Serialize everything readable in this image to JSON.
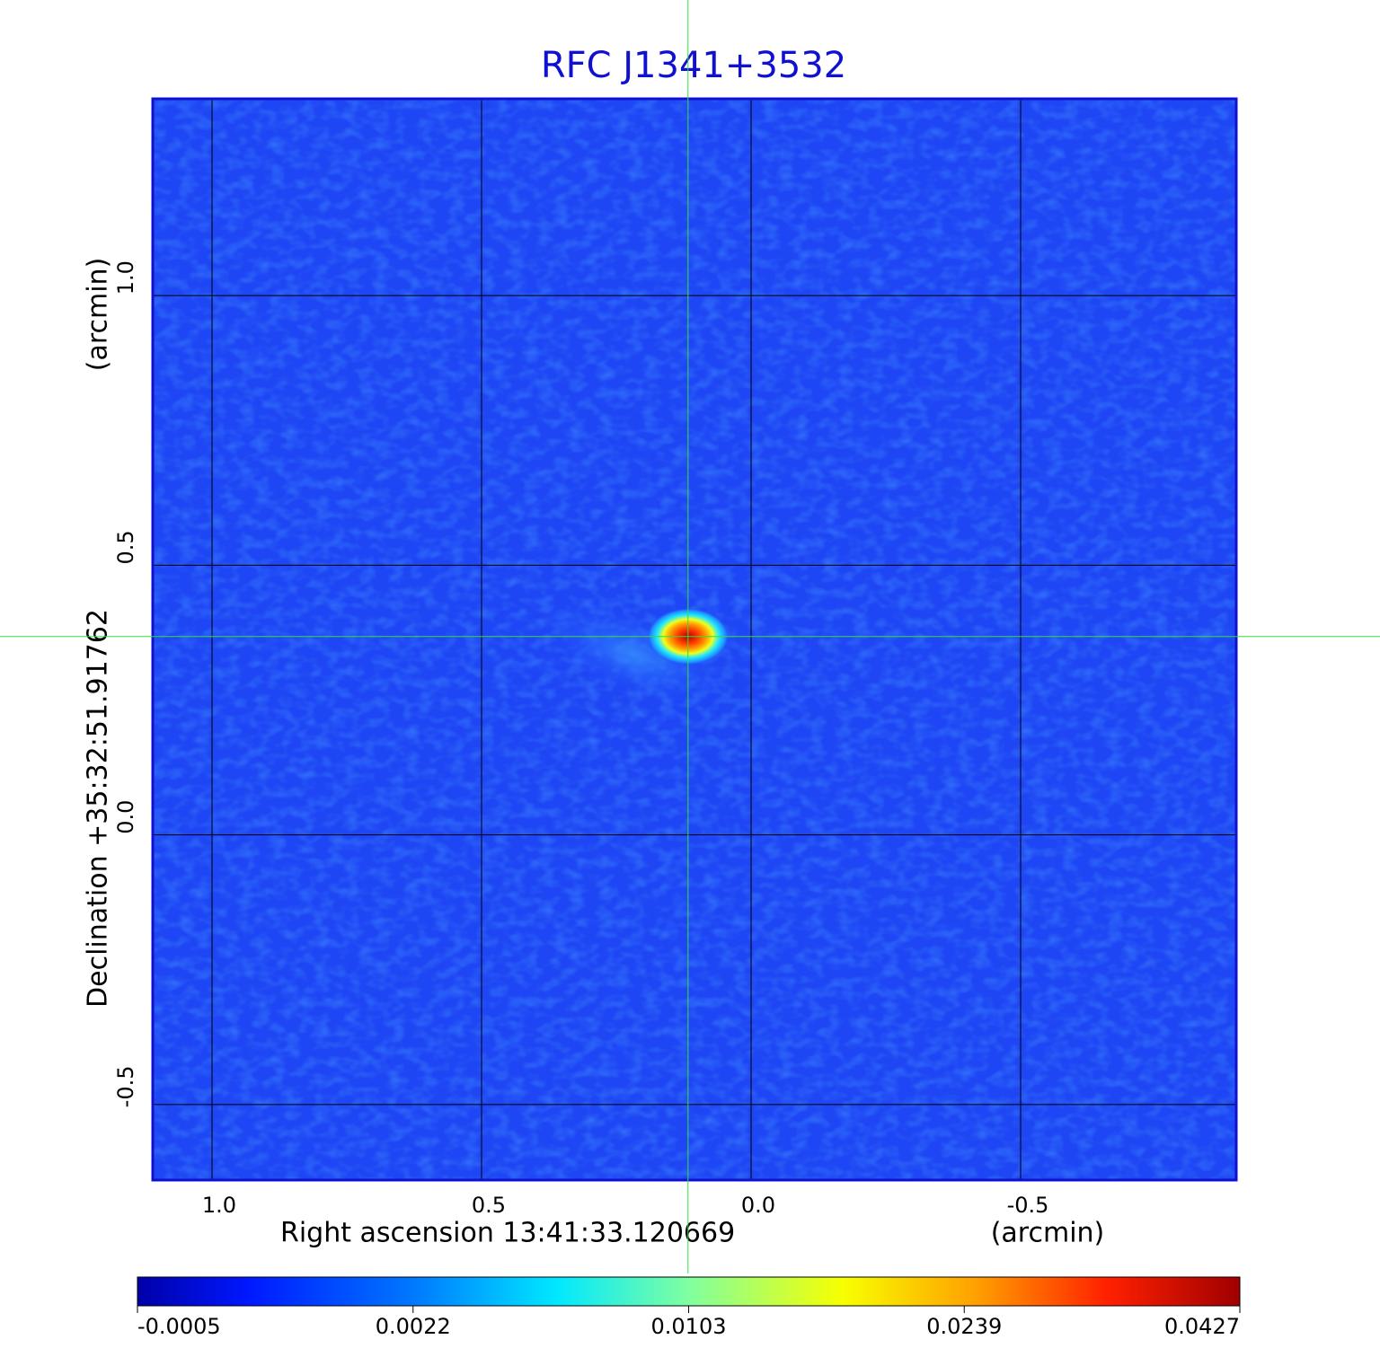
{
  "chart_data": {
    "type": "image",
    "title": "RFC J1341+3532",
    "x_label": "Right ascension  13:41:33.120669",
    "x_unit": "(arcmin)",
    "y_label": "Declination  +35:32:51.91762",
    "y_unit": "(arcmin)",
    "xlim": [
      1.11,
      -0.9
    ],
    "ylim": [
      -0.64,
      1.365
    ],
    "xticks": [
      {
        "value": 1,
        "label": "1.0"
      },
      0.5,
      {
        "value": 0,
        "label": "0.0"
      },
      -0.5
    ],
    "yticks": [
      -0.5,
      {
        "value": 0,
        "label": "0.0"
      },
      0.5,
      {
        "value": 1,
        "label": "1.0"
      }
    ],
    "grid": true,
    "source": {
      "x": 0.117,
      "y": 0.368,
      "peak": 0.0427
    },
    "clim": [
      -0.0005,
      0.0427
    ],
    "colorbar_ticks": [
      -0.0005,
      0.0022,
      0.0103,
      0.0239,
      0.0427
    ]
  }
}
